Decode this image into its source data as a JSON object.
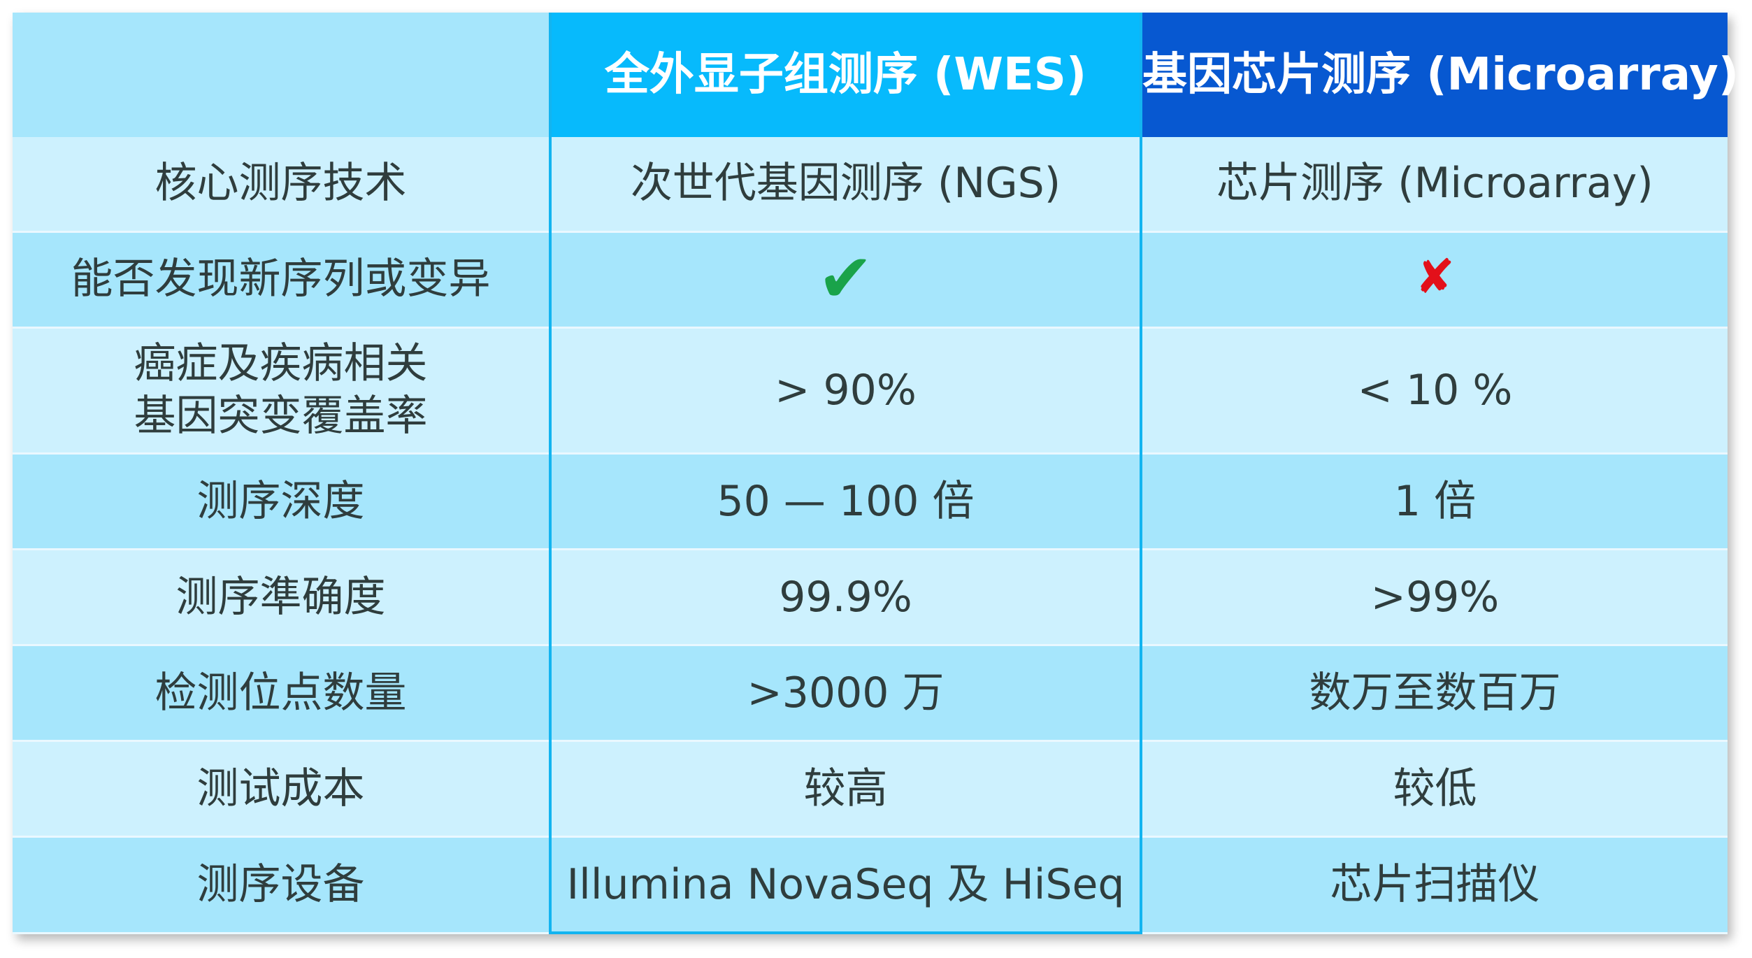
{
  "header": {
    "corner": "",
    "col_wes": "全外显子组测序 (WES)",
    "col_micro": "基因芯片测序 (Microarray)"
  },
  "rows": [
    {
      "label": "核心测序技术",
      "wes": "次世代基因测序 (NGS)",
      "micro": "芯片测序 (Microarray)"
    },
    {
      "label": "能否发现新序列或变异",
      "wes_icon": "check-icon",
      "micro_icon": "cross-icon"
    },
    {
      "label_lines": [
        "癌症及疾病相关",
        "基因突变覆盖率"
      ],
      "wes": "> 90%",
      "micro": "< 10 %"
    },
    {
      "label": "测序深度",
      "wes": "50 — 100 倍",
      "micro": "1 倍"
    },
    {
      "label": "测序準确度",
      "wes": "99.9%",
      "micro": ">99%"
    },
    {
      "label": "检测位点数量",
      "wes": ">3000 万",
      "micro": "数万至数百万"
    },
    {
      "label": "测试成本",
      "wes": "较高",
      "micro": "较低"
    },
    {
      "label": "测序设备",
      "wes": "Illumina NovaSeq 及 HiSeq",
      "micro": "芯片扫描仪"
    }
  ],
  "colors": {
    "header_wes": "#07bafc",
    "header_micro": "#0758d1",
    "row_light": "#cdf1fe",
    "row_dark": "#a6e6fc",
    "check": "#1aa34a",
    "cross": "#e3101a"
  }
}
